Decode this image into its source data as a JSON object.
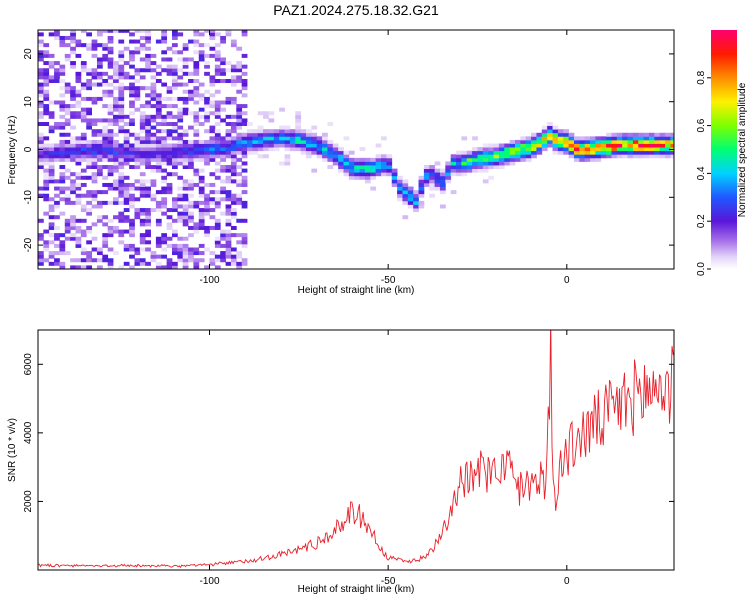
{
  "title": "PAZ1.2024.275.18.32.G21",
  "chart_data": [
    {
      "type": "heatmap",
      "xlabel": "Height of straight line (km)",
      "ylabel": "Frequency (Hz)",
      "xlim": [
        -148,
        30
      ],
      "ylim": [
        -25,
        25
      ],
      "x_ticks": [
        -100,
        -50,
        0
      ],
      "y_ticks": [
        -20,
        -10,
        0,
        10,
        20
      ],
      "grid": false,
      "colorbar": {
        "label": "Normalized spectral amplitude",
        "range": [
          0,
          1
        ],
        "ticks": [
          0.0,
          0.2,
          0.4,
          0.6,
          0.8
        ]
      },
      "ridge": {
        "x": [
          -148,
          -140,
          -130,
          -120,
          -110,
          -100,
          -95,
          -90,
          -85,
          -80,
          -75,
          -70,
          -65,
          -60,
          -55,
          -50,
          -47,
          -45,
          -42,
          -40,
          -38,
          -35,
          -32,
          -30,
          -27,
          -25,
          -20,
          -15,
          -10,
          -7,
          -5,
          -3,
          0,
          3,
          5,
          10,
          15,
          20,
          25,
          30
        ],
        "y": [
          -1,
          -0.5,
          0,
          -1,
          -0.5,
          0,
          0.5,
          1.5,
          2,
          2.5,
          2,
          1,
          -1,
          -4,
          -4,
          -3,
          -8,
          -9,
          -11,
          -6,
          -5,
          -7,
          -3,
          -3,
          -2.5,
          -2,
          -1.5,
          -0.5,
          0.5,
          1.5,
          3,
          2,
          1.5,
          0,
          0,
          0.5,
          1,
          1,
          1,
          1
        ],
        "amplitude": [
          0.2,
          0.25,
          0.3,
          0.2,
          0.25,
          0.3,
          0.3,
          0.35,
          0.4,
          0.35,
          0.45,
          0.4,
          0.4,
          0.45,
          0.45,
          0.3,
          0.35,
          0.4,
          0.35,
          0.35,
          0.3,
          0.35,
          0.4,
          0.45,
          0.55,
          0.55,
          0.6,
          0.65,
          0.65,
          0.75,
          0.7,
          0.8,
          0.85,
          0.9,
          0.85,
          0.9,
          0.9,
          0.9,
          0.85,
          0.8
        ]
      }
    },
    {
      "type": "line",
      "xlabel": "Height of straight line (km)",
      "ylabel": "SNR (10 * v/v)",
      "xlim": [
        -148,
        30
      ],
      "ylim": [
        0,
        7000
      ],
      "x_ticks": [
        -100,
        -50,
        0
      ],
      "y_ticks": [
        2000,
        4000,
        6000
      ],
      "grid": false,
      "series": [
        {
          "color": "#e8202a",
          "x": [
            -148,
            -140,
            -130,
            -120,
            -110,
            -100,
            -95,
            -90,
            -85,
            -80,
            -75,
            -70,
            -65,
            -62,
            -60,
            -57,
            -55,
            -52,
            -50,
            -47,
            -45,
            -42,
            -40,
            -37,
            -35,
            -33,
            -32,
            -30,
            -28,
            -26,
            -24,
            -22,
            -20,
            -18,
            -16,
            -14,
            -12,
            -10,
            -8,
            -6,
            -5,
            -4.5,
            -4,
            -3,
            -2,
            0,
            2,
            5,
            10,
            15,
            20,
            25,
            30
          ],
          "y": [
            150,
            130,
            120,
            130,
            110,
            150,
            200,
            260,
            350,
            450,
            600,
            800,
            1100,
            1500,
            1750,
            1500,
            1200,
            600,
            350,
            300,
            250,
            300,
            350,
            700,
            1200,
            1600,
            2000,
            2600,
            2800,
            2500,
            3000,
            2700,
            3300,
            2900,
            3100,
            2200,
            2600,
            2400,
            2900,
            2300,
            4500,
            6900,
            2500,
            2200,
            3000,
            3300,
            3700,
            4000,
            4400,
            4800,
            5100,
            5300,
            5400
          ]
        }
      ]
    }
  ]
}
